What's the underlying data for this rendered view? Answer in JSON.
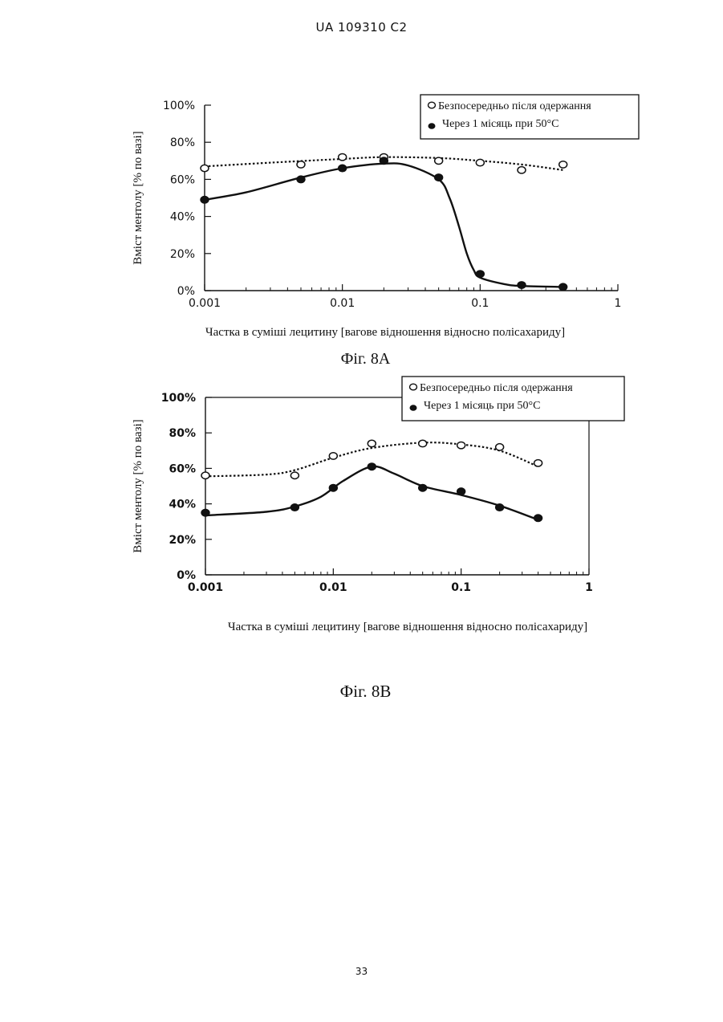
{
  "header": {
    "text": "UA   109310   C2"
  },
  "page_number": "33",
  "chart_data": [
    {
      "type": "line",
      "figure_label": "Фіг. 8А",
      "xlabel": "Частка в суміші лецитину [вагове відношення відносно полісахариду]",
      "ylabel": "Вміст ментолу [% по вазі]",
      "x_scale": "log",
      "xlim": [
        0.001,
        1
      ],
      "ylim": [
        0,
        100
      ],
      "x_ticks": [
        {
          "value": 0.001,
          "label": "0.001"
        },
        {
          "value": 0.01,
          "label": "0.01"
        },
        {
          "value": 0.1,
          "label": "0.1"
        },
        {
          "value": 1,
          "label": "1"
        }
      ],
      "y_ticks": [
        {
          "value": 0,
          "label": "0%"
        },
        {
          "value": 20,
          "label": "20%"
        },
        {
          "value": 40,
          "label": "40%"
        },
        {
          "value": 60,
          "label": "60%"
        },
        {
          "value": 80,
          "label": "80%"
        },
        {
          "value": 100,
          "label": "100%"
        }
      ],
      "legend_position": "top-right",
      "series": [
        {
          "name": "Безпосередньо після одержання",
          "marker": "open-circle",
          "line_style": "dotted",
          "x": [
            0.001,
            0.005,
            0.01,
            0.02,
            0.05,
            0.1,
            0.2,
            0.4
          ],
          "y": [
            66,
            68,
            72,
            72,
            70,
            69,
            65,
            68
          ],
          "curve_x": [
            0.001,
            0.003,
            0.01,
            0.02,
            0.05,
            0.1,
            0.2,
            0.4
          ],
          "curve_y": [
            67,
            69,
            71,
            72,
            71.5,
            70,
            68,
            65
          ]
        },
        {
          "name": "Через 1 місяць при 50°C",
          "marker": "filled-circle",
          "line_style": "solid",
          "x": [
            0.001,
            0.005,
            0.01,
            0.02,
            0.05,
            0.1,
            0.2,
            0.4
          ],
          "y": [
            49,
            60,
            66,
            70,
            61,
            9,
            3,
            2
          ],
          "curve_x": [
            0.001,
            0.002,
            0.005,
            0.01,
            0.02,
            0.03,
            0.05,
            0.06,
            0.07,
            0.08,
            0.09,
            0.1,
            0.15,
            0.2,
            0.4
          ],
          "curve_y": [
            49,
            53,
            61,
            66,
            68.5,
            67.5,
            60,
            50,
            35,
            20,
            11,
            7,
            3.5,
            2.5,
            2
          ]
        }
      ]
    },
    {
      "type": "line",
      "figure_label": "Фіг. 8В",
      "xlabel": "Частка в суміші лецитину [вагове відношення відносно полісахариду]",
      "ylabel": "Вміст ментолу [% по вазі]",
      "x_scale": "log",
      "xlim": [
        0.001,
        1
      ],
      "ylim": [
        0,
        100
      ],
      "x_ticks": [
        {
          "value": 0.001,
          "label": "0.001"
        },
        {
          "value": 0.01,
          "label": "0.01"
        },
        {
          "value": 0.1,
          "label": "0.1"
        },
        {
          "value": 1,
          "label": "1"
        }
      ],
      "y_ticks": [
        {
          "value": 0,
          "label": "0%"
        },
        {
          "value": 20,
          "label": "20%"
        },
        {
          "value": 40,
          "label": "40%"
        },
        {
          "value": 60,
          "label": "60%"
        },
        {
          "value": 80,
          "label": "80%"
        },
        {
          "value": 100,
          "label": "100%"
        }
      ],
      "legend_position": "top-right",
      "series": [
        {
          "name": "Безпосередньо після одержання",
          "marker": "open-circle",
          "line_style": "dotted",
          "x": [
            0.001,
            0.005,
            0.01,
            0.02,
            0.05,
            0.1,
            0.2,
            0.4
          ],
          "y": [
            56,
            56,
            67,
            74,
            74,
            73,
            72,
            63
          ],
          "curve_x": [
            0.001,
            0.003,
            0.005,
            0.01,
            0.02,
            0.05,
            0.1,
            0.2,
            0.4
          ],
          "curve_y": [
            55.5,
            56.5,
            59,
            66,
            71.5,
            74.5,
            73.5,
            70,
            61
          ]
        },
        {
          "name": "Через 1 місяць при 50°C",
          "marker": "filled-circle",
          "line_style": "solid",
          "x": [
            0.001,
            0.005,
            0.01,
            0.02,
            0.05,
            0.1,
            0.2,
            0.4
          ],
          "y": [
            35,
            38,
            49,
            61,
            49,
            47,
            38,
            32
          ],
          "curve_x": [
            0.001,
            0.003,
            0.005,
            0.008,
            0.012,
            0.02,
            0.03,
            0.05,
            0.1,
            0.2,
            0.4
          ],
          "curve_y": [
            33.5,
            35.5,
            38.5,
            44,
            53,
            61,
            57,
            50,
            45,
            39,
            31
          ]
        }
      ]
    }
  ]
}
